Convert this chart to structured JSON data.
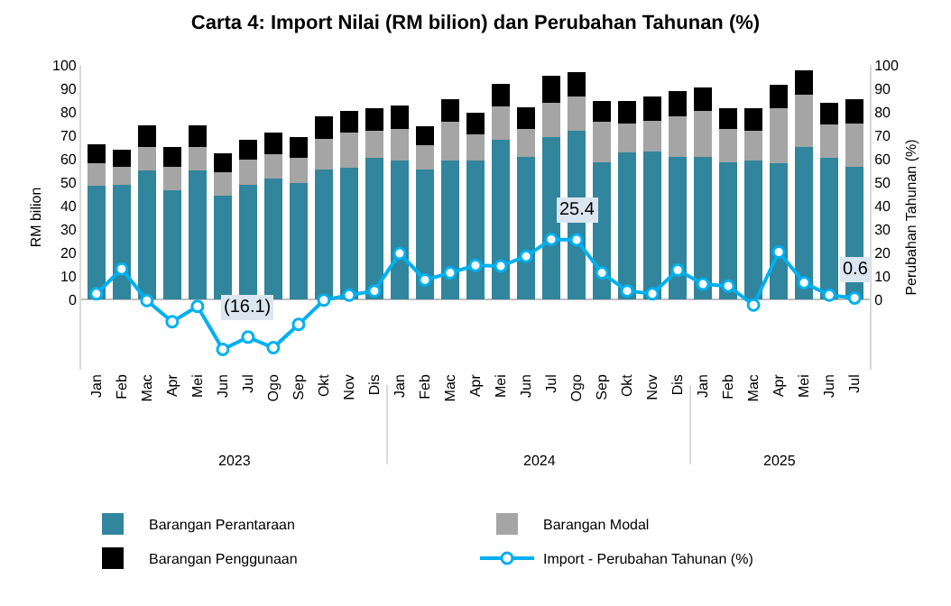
{
  "chart_data": {
    "type": "bar",
    "stacked": true,
    "title": "Carta 4: Import Nilai (RM bilion) dan Perubahan Tahunan (%)",
    "ylabel": "RM bilion",
    "y2label": "Perubahan Tahunan (%)",
    "categories": [
      "Jan",
      "Feb",
      "Mac",
      "Apr",
      "Mei",
      "Jun",
      "Jul",
      "Ogo",
      "Sep",
      "Okt",
      "Nov",
      "Dis",
      "Jan",
      "Feb",
      "Mac",
      "Apr",
      "Mei",
      "Jun",
      "Jul",
      "Ogo",
      "Sep",
      "Okt",
      "Nov",
      "Dis",
      "Jan",
      "Feb",
      "Mac",
      "Apr",
      "Mei",
      "Jun",
      "Jul"
    ],
    "series": [
      {
        "name": "Barangan Perantaraan",
        "color": "#31859c",
        "values": [
          48.4,
          49,
          55,
          46.6,
          55,
          44.3,
          49,
          51.4,
          49.6,
          55.5,
          56.1,
          60.3,
          59.1,
          55.5,
          59.1,
          59.1,
          68,
          60.7,
          69.2,
          72.1,
          58.3,
          62.6,
          63.2,
          60.7,
          60.7,
          58.3,
          59.1,
          57.9,
          65,
          60.3,
          56.7
        ]
      },
      {
        "name": "Barangan Modal",
        "color": "#a5a5a5",
        "values": [
          9.5,
          7.7,
          10,
          10.1,
          10,
          10,
          10.7,
          10.6,
          10.7,
          13.1,
          14.9,
          11.8,
          13.6,
          10.1,
          16.6,
          11.3,
          14.2,
          12,
          14.8,
          14.3,
          17.4,
          12.5,
          13.1,
          17.4,
          19.7,
          14.4,
          13,
          23.7,
          22.5,
          14.2,
          18.4
        ]
      },
      {
        "name": "Barangan Penggunaan",
        "color": "#000000",
        "values": [
          8.3,
          7.1,
          9.1,
          8.3,
          9.1,
          8,
          8.5,
          9,
          8.9,
          9.5,
          9.4,
          9.5,
          10.1,
          8.3,
          9.5,
          9.4,
          9.9,
          9.3,
          11.3,
          10.4,
          9.1,
          9.7,
          10.1,
          10.6,
          10.1,
          8.9,
          9.5,
          10.1,
          10.1,
          9.5,
          10.1
        ]
      },
      {
        "name": "Import - Perubahan Tahunan (%)",
        "type": "line",
        "axis": "y2",
        "color": "#00b0f0",
        "marker": "circle",
        "values": [
          2.4,
          13,
          -0.5,
          -9.5,
          -3,
          -21.3,
          -16.1,
          -20.6,
          -10.7,
          -0.3,
          1.8,
          3.6,
          19.6,
          8.3,
          11.3,
          14.5,
          14.2,
          18.4,
          25.6,
          25.4,
          11.3,
          3.6,
          2.4,
          12.5,
          6.5,
          5.7,
          -2.4,
          20.2,
          7.1,
          1.8,
          0.6
        ],
        "value_labels": [
          null,
          null,
          null,
          null,
          null,
          null,
          "(16.1)",
          null,
          null,
          null,
          null,
          null,
          null,
          null,
          null,
          null,
          null,
          null,
          null,
          "25.4",
          null,
          null,
          null,
          null,
          null,
          null,
          null,
          null,
          null,
          null,
          "0.6"
        ]
      }
    ],
    "ylim": [
      -30,
      100
    ],
    "yticks": [
      0,
      10,
      20,
      30,
      40,
      50,
      60,
      70,
      80,
      90,
      100
    ],
    "y2lim": [
      -30,
      100
    ],
    "y2ticks": [
      0,
      10,
      20,
      30,
      40,
      50,
      60,
      70,
      80,
      90,
      100
    ],
    "annotations": [
      "2023",
      "2024",
      "2025"
    ],
    "ref_lines": [
      {
        "axis": "y",
        "value": 0,
        "color": "#bfbfbf"
      }
    ],
    "legend": "bottom",
    "grid": false
  }
}
